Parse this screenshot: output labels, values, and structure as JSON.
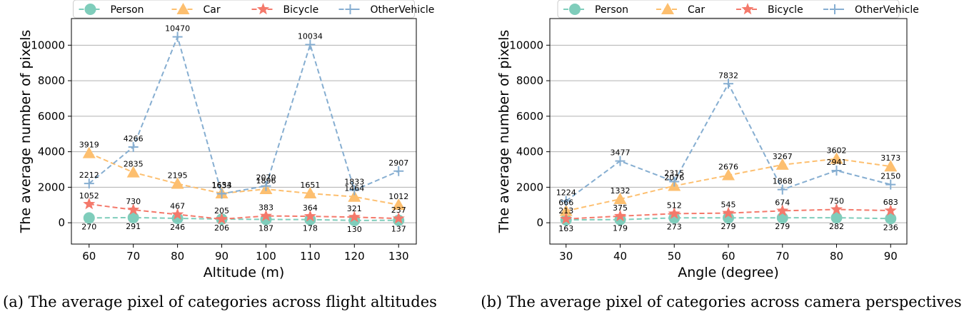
{
  "colors": {
    "Person": "#7fcdbb",
    "Car": "#fdbf6f",
    "Bicycle": "#f4796b",
    "OtherVehicle": "#86aed1"
  },
  "series_markers": {
    "Person": "circle",
    "Car": "triangle",
    "Bicycle": "star",
    "OtherVehicle": "plus"
  },
  "chart_data": [
    {
      "type": "line",
      "caption": "(a) The average pixel of categories across flight altitudes",
      "xlabel": "Altitude (m)",
      "ylabel": "The average number of pixels",
      "x": [
        60,
        70,
        80,
        90,
        100,
        110,
        120,
        130
      ],
      "xlim": [
        56,
        134
      ],
      "ylim": [
        -1200,
        11500
      ],
      "yticks": [
        0,
        2000,
        4000,
        6000,
        8000,
        10000
      ],
      "grid": "y",
      "legend": "top-center",
      "series": [
        {
          "name": "Person",
          "values": [
            270,
            291,
            246,
            206,
            187,
            178,
            130,
            137
          ]
        },
        {
          "name": "Car",
          "values": [
            3919,
            2835,
            2195,
            1654,
            1896,
            1651,
            1464,
            1012
          ]
        },
        {
          "name": "Bicycle",
          "values": [
            1052,
            730,
            467,
            205,
            383,
            364,
            321,
            237
          ]
        },
        {
          "name": "OtherVehicle",
          "values": [
            2212,
            4266,
            10470,
            1633,
            2070,
            10034,
            1833,
            2907
          ]
        }
      ]
    },
    {
      "type": "line",
      "caption": "(b) The average pixel of categories across camera perspectives",
      "xlabel": "Angle (degree)",
      "ylabel": "The average number of pixels",
      "x": [
        30,
        40,
        50,
        60,
        70,
        80,
        90
      ],
      "xlim": [
        27,
        93
      ],
      "ylim": [
        -1200,
        11500
      ],
      "yticks": [
        0,
        2000,
        4000,
        6000,
        8000,
        10000
      ],
      "grid": "y",
      "legend": "top-center",
      "series": [
        {
          "name": "Person",
          "values": [
            163,
            179,
            273,
            279,
            279,
            282,
            236
          ]
        },
        {
          "name": "Car",
          "values": [
            666,
            1332,
            2076,
            2676,
            3267,
            3602,
            3173
          ]
        },
        {
          "name": "Bicycle",
          "values": [
            213,
            375,
            512,
            545,
            674,
            750,
            683
          ]
        },
        {
          "name": "OtherVehicle",
          "values": [
            1224,
            3477,
            2315,
            7832,
            1868,
            2941,
            2150
          ]
        }
      ]
    }
  ]
}
